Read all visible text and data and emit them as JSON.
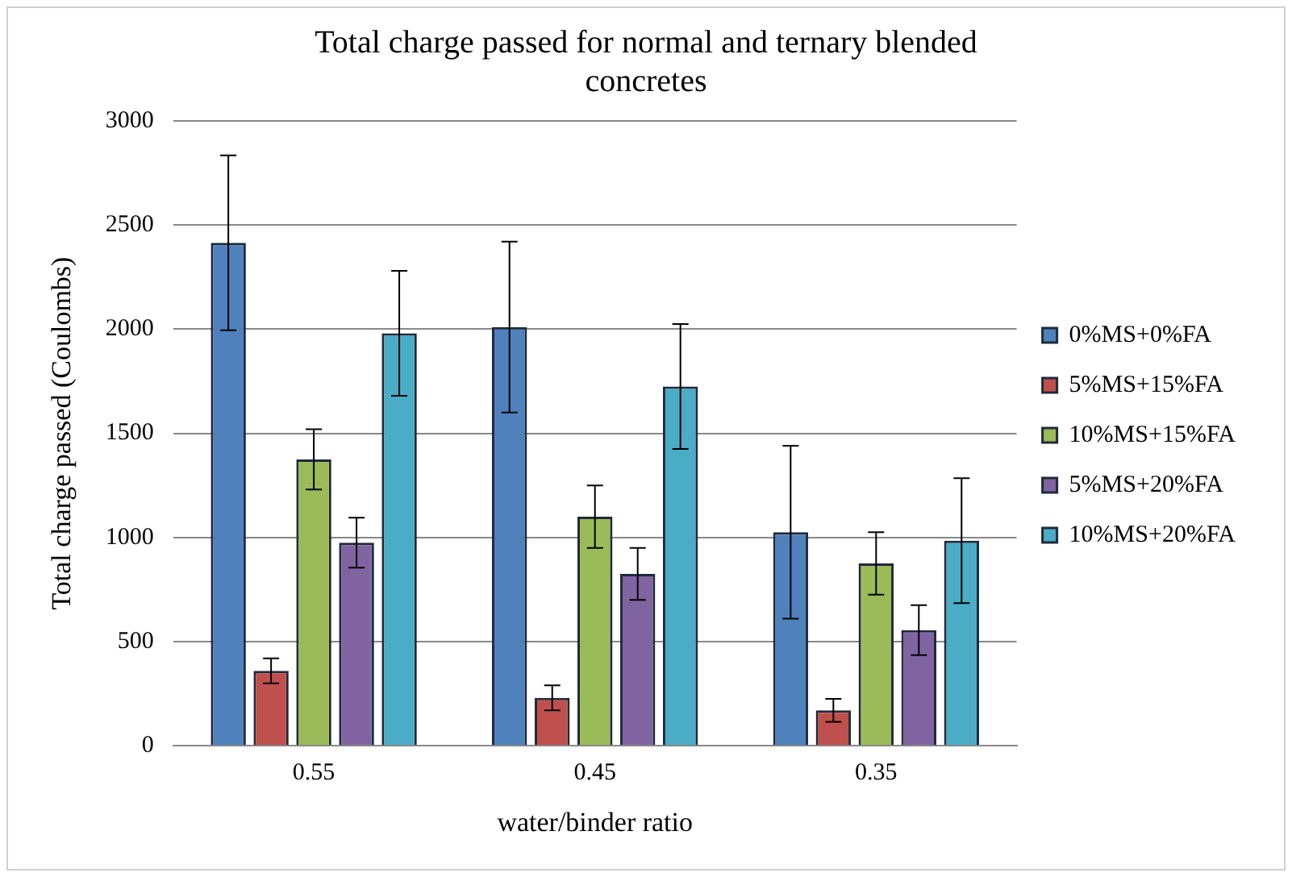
{
  "chart_data": {
    "type": "bar",
    "title": "Total charge passed for normal and ternary blended concretes",
    "xlabel": "water/binder ratio",
    "ylabel": "Total charge passed (Coulombs)",
    "categories": [
      "0.55",
      "0.45",
      "0.35"
    ],
    "series": [
      {
        "name": "0%MS+0%FA",
        "color": "#4f81bd",
        "values": [
          2415,
          2010,
          1025
        ],
        "errors": [
          420,
          410,
          415
        ]
      },
      {
        "name": "5%MS+15%FA",
        "color": "#c0504d",
        "values": [
          360,
          230,
          170
        ],
        "errors": [
          60,
          60,
          55
        ]
      },
      {
        "name": "10%MS+15%FA",
        "color": "#9bbb59",
        "values": [
          1375,
          1100,
          875
        ],
        "errors": [
          145,
          150,
          150
        ]
      },
      {
        "name": "5%MS+20%FA",
        "color": "#8064a2",
        "values": [
          975,
          825,
          555
        ],
        "errors": [
          120,
          125,
          120
        ]
      },
      {
        "name": "10%MS+20%FA",
        "color": "#4bacc6",
        "values": [
          1980,
          1725,
          985
        ],
        "errors": [
          300,
          300,
          300
        ]
      }
    ],
    "ylim": [
      0,
      3000
    ],
    "yticks": [
      0,
      500,
      1000,
      1500,
      2000,
      2500,
      3000
    ],
    "grid": "y",
    "legend": "right"
  }
}
